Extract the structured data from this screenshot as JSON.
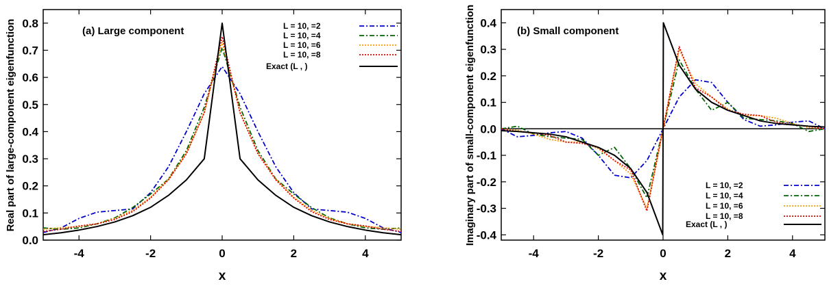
{
  "chart_data": [
    {
      "type": "line",
      "title": "(a) Large component",
      "xlabel": "x",
      "ylabel": "Real part of large-component eigenfunction",
      "xlim": [
        -5,
        5
      ],
      "ylim": [
        0,
        0.85
      ],
      "xticks": [
        "-4",
        "-2",
        "0",
        "2",
        "4"
      ],
      "xtick_values": [
        -4,
        -2,
        0,
        2,
        4
      ],
      "yticks": [
        "0.0",
        "0.1",
        "0.2",
        "0.3",
        "0.4",
        "0.5",
        "0.6",
        "0.7",
        "0.8"
      ],
      "ytick_values": [
        0,
        0.1,
        0.2,
        0.3,
        0.4,
        0.5,
        0.6,
        0.7,
        0.8
      ],
      "legend_position": "top-right",
      "series": [
        {
          "name": "L = 10,     =2",
          "color": "#0000cc",
          "dash": "dashdot",
          "x": [
            -5,
            -4.5,
            -4,
            -3.5,
            -3,
            -2.5,
            -2,
            -1.5,
            -1,
            -0.5,
            0,
            0.5,
            1,
            1.5,
            2,
            2.5,
            3,
            3.5,
            4,
            4.5,
            5
          ],
          "y": [
            0.028,
            0.045,
            0.08,
            0.103,
            0.109,
            0.115,
            0.175,
            0.27,
            0.4,
            0.54,
            0.64,
            0.54,
            0.4,
            0.27,
            0.175,
            0.115,
            0.109,
            0.103,
            0.08,
            0.045,
            0.028
          ]
        },
        {
          "name": "L = 10,     =4",
          "color": "#006400",
          "dash": "dashdot",
          "x": [
            -5,
            -4.5,
            -4,
            -3.5,
            -3,
            -2.5,
            -2,
            -1.5,
            -1,
            -0.5,
            0,
            0.5,
            1,
            1.5,
            2,
            2.5,
            3,
            3.5,
            4,
            4.5,
            5
          ],
          "y": [
            0.045,
            0.04,
            0.045,
            0.06,
            0.082,
            0.12,
            0.17,
            0.225,
            0.33,
            0.49,
            0.71,
            0.49,
            0.33,
            0.225,
            0.17,
            0.12,
            0.082,
            0.06,
            0.045,
            0.04,
            0.045
          ]
        },
        {
          "name": "L = 10,     =6",
          "color": "#ff9900",
          "dash": "dotted",
          "x": [
            -5,
            -4.5,
            -4,
            -3.5,
            -3,
            -2.5,
            -2,
            -1.5,
            -1,
            -0.5,
            0,
            0.5,
            1,
            1.5,
            2,
            2.5,
            3,
            3.5,
            4,
            4.5,
            5
          ],
          "y": [
            0.04,
            0.046,
            0.05,
            0.06,
            0.08,
            0.11,
            0.158,
            0.225,
            0.32,
            0.47,
            0.73,
            0.47,
            0.32,
            0.225,
            0.158,
            0.11,
            0.08,
            0.06,
            0.05,
            0.046,
            0.04
          ]
        },
        {
          "name": "L = 10,     =8",
          "color": "#dd0000",
          "dash": "dotted",
          "x": [
            -5,
            -4.5,
            -4,
            -3.5,
            -3,
            -2.5,
            -2,
            -1.5,
            -1,
            -0.5,
            0,
            0.5,
            1,
            1.5,
            2,
            2.5,
            3,
            3.5,
            4,
            4.5,
            5
          ],
          "y": [
            0.032,
            0.04,
            0.052,
            0.06,
            0.076,
            0.105,
            0.155,
            0.222,
            0.318,
            0.47,
            0.75,
            0.47,
            0.318,
            0.222,
            0.155,
            0.105,
            0.076,
            0.06,
            0.052,
            0.04,
            0.032
          ]
        },
        {
          "name": "Exact (L         ,          )",
          "color": "#000000",
          "dash": "solid",
          "x": [
            -5,
            -4.5,
            -4,
            -3.5,
            -3,
            -2.5,
            -2,
            -1.5,
            -1,
            -0.5,
            0,
            0.5,
            1,
            1.5,
            2,
            2.5,
            3,
            3.5,
            4,
            4.5,
            5
          ],
          "y": [
            0.02,
            0.027,
            0.037,
            0.05,
            0.067,
            0.09,
            0.121,
            0.165,
            0.222,
            0.3,
            0.8,
            0.3,
            0.222,
            0.165,
            0.121,
            0.09,
            0.067,
            0.05,
            0.037,
            0.027,
            0.02
          ]
        }
      ]
    },
    {
      "type": "line",
      "title": "(b) Small component",
      "xlabel": "x",
      "ylabel": "Imaginary part of small-component eigenfunction",
      "xlim": [
        -5,
        5
      ],
      "ylim": [
        -0.42,
        0.45
      ],
      "xticks": [
        "-4",
        "-2",
        "0",
        "2",
        "4"
      ],
      "xtick_values": [
        -4,
        -2,
        0,
        2,
        4
      ],
      "yticks": [
        "-0.4",
        "-0.3",
        "-0.2",
        "-0.1",
        "0.0",
        "0.1",
        "0.2",
        "0.3",
        "0.4"
      ],
      "ytick_values": [
        -0.4,
        -0.3,
        -0.2,
        -0.1,
        0,
        0.1,
        0.2,
        0.3,
        0.4
      ],
      "legend_position": "bottom-right",
      "series": [
        {
          "name": "L = 10,     =2",
          "color": "#0000cc",
          "dash": "dashdot",
          "x": [
            -5,
            -4.5,
            -4,
            -3.5,
            -3,
            -2.5,
            -2,
            -1.5,
            -1,
            -0.5,
            0,
            0.5,
            1,
            1.5,
            2,
            2.5,
            3,
            3.5,
            4,
            4.5,
            5
          ],
          "y": [
            0,
            -0.03,
            -0.025,
            -0.015,
            -0.01,
            -0.035,
            -0.1,
            -0.175,
            -0.185,
            -0.12,
            0,
            0.12,
            0.185,
            0.175,
            0.1,
            0.035,
            0.01,
            0.015,
            0.025,
            0.03,
            0
          ]
        },
        {
          "name": "L = 10,     =4",
          "color": "#006400",
          "dash": "dashdot",
          "x": [
            -5,
            -4.5,
            -4,
            -3.5,
            -3,
            -2.5,
            -2,
            -1.5,
            -1,
            -0.5,
            0,
            0.5,
            1,
            1.5,
            2,
            2.5,
            3,
            3.5,
            4,
            4.5,
            5
          ],
          "y": [
            0,
            0.01,
            -0.02,
            -0.03,
            -0.035,
            -0.04,
            -0.1,
            -0.07,
            -0.15,
            -0.26,
            0,
            0.26,
            0.15,
            0.07,
            0.1,
            0.04,
            0.035,
            0.03,
            0.02,
            -0.01,
            0
          ]
        },
        {
          "name": "L = 10,     =6",
          "color": "#ff9900",
          "dash": "dotted",
          "x": [
            -5,
            -4.5,
            -4,
            -3.5,
            -3,
            -2.5,
            -2,
            -1.5,
            -1,
            -0.5,
            0,
            0.5,
            1,
            1.5,
            2,
            2.5,
            3,
            3.5,
            4,
            4.5,
            5
          ],
          "y": [
            0,
            -0.005,
            -0.02,
            -0.04,
            -0.05,
            -0.05,
            -0.075,
            -0.12,
            -0.17,
            -0.3,
            0,
            0.3,
            0.17,
            0.12,
            0.075,
            0.05,
            0.05,
            0.04,
            0.02,
            0.005,
            0
          ]
        },
        {
          "name": "L = 10,     =8",
          "color": "#dd0000",
          "dash": "dotted",
          "x": [
            -5,
            -4.5,
            -4,
            -3.5,
            -3,
            -2.5,
            -2,
            -1.5,
            -1,
            -0.5,
            0,
            0.5,
            1,
            1.5,
            2,
            2.5,
            3,
            3.5,
            4,
            4.5,
            5
          ],
          "y": [
            0,
            -0.01,
            -0.015,
            -0.025,
            -0.05,
            -0.055,
            -0.07,
            -0.12,
            -0.155,
            -0.31,
            0,
            0.31,
            0.155,
            0.12,
            0.07,
            0.055,
            0.05,
            0.025,
            0.015,
            0.01,
            0
          ]
        },
        {
          "name": "Exact (L         ,          )",
          "color": "#000000",
          "dash": "solid",
          "x": [
            -5,
            -4.5,
            -4,
            -3.5,
            -3,
            -2.5,
            -2,
            -1.5,
            -1,
            -0.5,
            -0.01,
            0,
            0.01,
            0.5,
            1,
            1.5,
            2,
            2.5,
            3,
            3.5,
            4,
            4.5,
            5
          ],
          "y": [
            -0.007,
            -0.01,
            -0.015,
            -0.02,
            -0.03,
            -0.05,
            -0.07,
            -0.1,
            -0.15,
            -0.24,
            -0.4,
            0,
            0.4,
            0.24,
            0.15,
            0.1,
            0.07,
            0.05,
            0.03,
            0.02,
            0.015,
            0.01,
            0.007
          ]
        }
      ]
    }
  ]
}
